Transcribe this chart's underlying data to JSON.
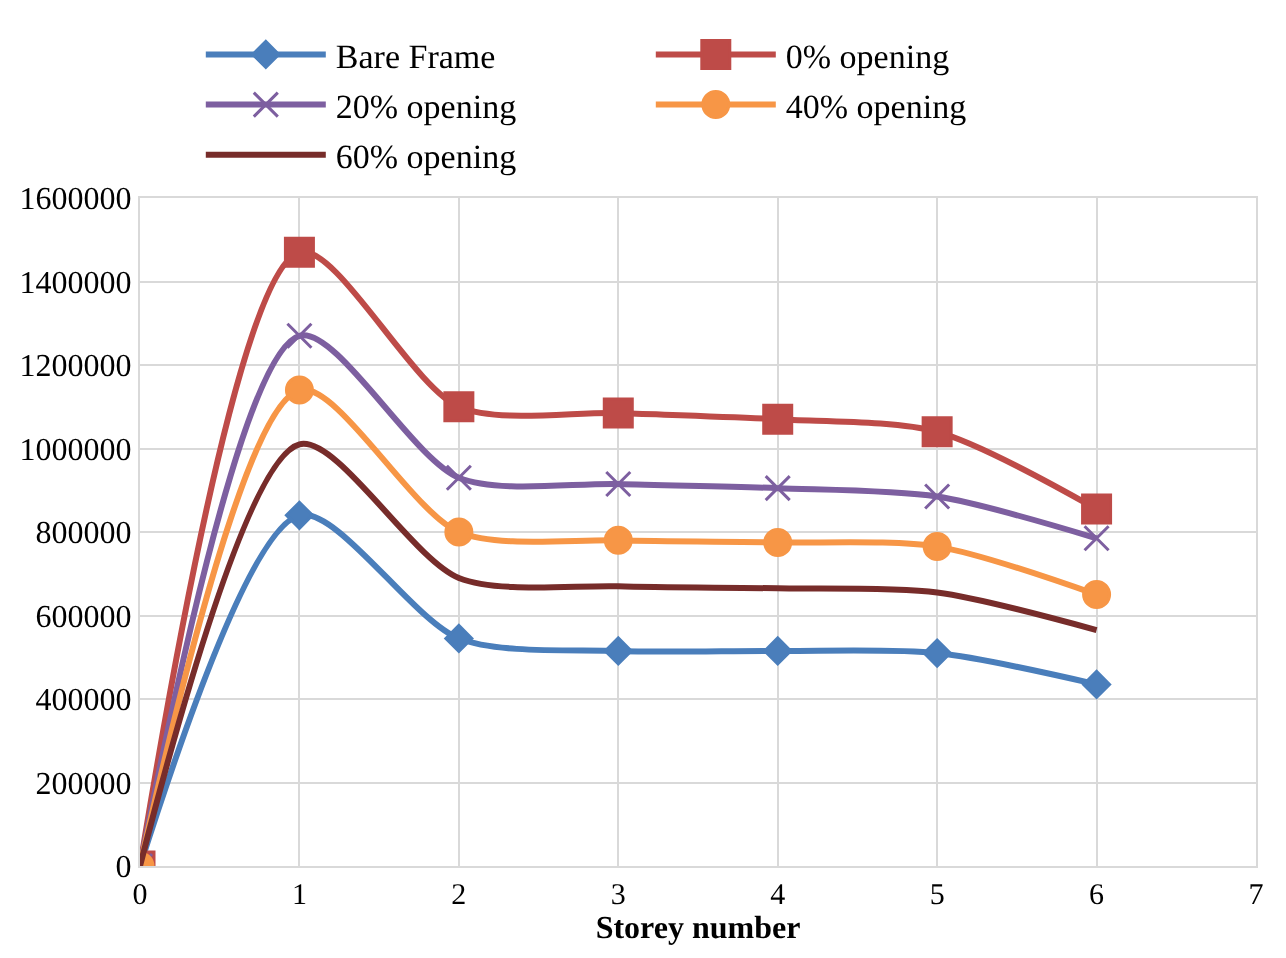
{
  "chart_data": {
    "type": "line",
    "xlabel": "Storey number",
    "x": [
      0,
      1,
      2,
      3,
      4,
      5,
      6
    ],
    "series": [
      {
        "name": "Bare Frame",
        "color": "#4a7ebb",
        "marker": "diamond",
        "values": [
          0,
          840000,
          545000,
          515000,
          515000,
          510000,
          435000
        ]
      },
      {
        "name": "0% opening",
        "color": "#be4b48",
        "marker": "square",
        "values": [
          0,
          1470000,
          1100000,
          1085000,
          1070000,
          1040000,
          855000
        ]
      },
      {
        "name": "20% opening",
        "color": "#7d5fa0",
        "marker": "cross",
        "values": [
          0,
          1270000,
          930000,
          915000,
          905000,
          885000,
          785000
        ]
      },
      {
        "name": "40% opening",
        "color": "#f79646",
        "marker": "circle",
        "values": [
          0,
          1140000,
          800000,
          780000,
          775000,
          765000,
          650000
        ]
      },
      {
        "name": "60% opening",
        "color": "#772c2a",
        "marker": "none",
        "values": [
          0,
          1010000,
          690000,
          670000,
          665000,
          655000,
          565000
        ]
      }
    ],
    "xlim": [
      0,
      7
    ],
    "xticks": [
      0,
      1,
      2,
      3,
      4,
      5,
      6,
      7
    ],
    "ylim": [
      0,
      1600000
    ],
    "yticks": [
      0,
      200000,
      400000,
      600000,
      800000,
      1000000,
      1200000,
      1400000,
      1600000
    ],
    "grid": true,
    "legend": "top"
  }
}
